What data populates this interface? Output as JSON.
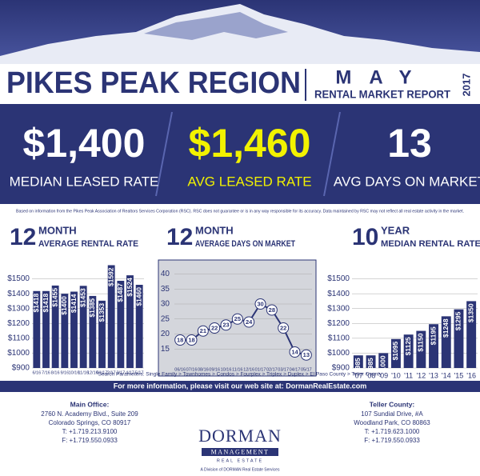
{
  "header": {
    "title": "PIKES PEAK REGION",
    "month": "MAY",
    "subtitle": "RENTAL MARKET REPORT",
    "year": "2017"
  },
  "stats": [
    {
      "value": "$1,400",
      "label": "MEDIAN LEASED RATE"
    },
    {
      "value": "$1,460",
      "label": "AVG LEASED RATE"
    },
    {
      "value": "13",
      "label": "AVG DAYS ON MARKET"
    }
  ],
  "note": "Based on information from the Pikes Peak Association of Realtors Services Corporation (RSC). RSC does not guarantee or is in any way responsible for its accuracy. Data maintained by RSC may not reflect all real estate activity in the market.",
  "chart_data": [
    {
      "type": "bar",
      "title_number": "12",
      "title_unit": "MONTH",
      "title": "AVERAGE RENTAL RATE",
      "color": "#2b3475",
      "categories": [
        "6/16",
        "7/16",
        "8/16",
        "9/16",
        "10/16",
        "11/16",
        "12/16",
        "01/17",
        "2/17",
        "3/17",
        "4/17",
        "5/17"
      ],
      "values": [
        1418,
        1418,
        1455,
        1400,
        1414,
        1453,
        1385,
        1353,
        1592,
        1487,
        1524,
        1460
      ],
      "value_labels": [
        "$1418",
        "$1418",
        "$1455",
        "$1400",
        "$1414",
        "$1453",
        "$1385",
        "$1353",
        "$1592",
        "$1487",
        "$1524",
        "$1460"
      ],
      "ylim": [
        900,
        1600
      ],
      "yticks": [
        {
          "value": 900,
          "label": "$900"
        },
        {
          "value": 1000,
          "label": "$1000"
        },
        {
          "value": 1100,
          "label": "$1100"
        },
        {
          "value": 1200,
          "label": "$1200"
        },
        {
          "value": 1300,
          "label": "$1300"
        },
        {
          "value": 1400,
          "label": "$1400"
        },
        {
          "value": 1500,
          "label": "$1500"
        }
      ],
      "grid": true
    },
    {
      "type": "line",
      "title_number": "12",
      "title_unit": "MONTH",
      "title": "AVERAGE DAYS ON MARKET",
      "color": "#2b3475",
      "categories": [
        "06/16",
        "07/16",
        "08/16",
        "09/16",
        "10/16",
        "11/16",
        "12/16",
        "01/17",
        "02/17",
        "03/17",
        "04/17",
        "05/17"
      ],
      "values": [
        18,
        18,
        21,
        22,
        23,
        25,
        24,
        30,
        28,
        22,
        14,
        13
      ],
      "ylim": [
        10,
        42
      ],
      "yticks": [
        15,
        20,
        25,
        30,
        35,
        40
      ],
      "grid": true
    },
    {
      "type": "bar",
      "title_number": "10",
      "title_unit": "YEAR",
      "title": "MEDIAN RENTAL RATE",
      "color": "#2b3475",
      "categories": [
        "'07",
        "'08",
        "'09",
        "'10",
        "'11",
        "'12",
        "'13",
        "'14",
        "'15",
        "'16"
      ],
      "values": [
        985,
        985,
        1000,
        1095,
        1125,
        1150,
        1195,
        1248,
        1295,
        1350
      ],
      "value_labels": [
        "$985",
        "$985",
        "$1000",
        "$1095",
        "$1125",
        "$1150",
        "$1195",
        "$1248",
        "$1295",
        "$1350"
      ],
      "ylim": [
        900,
        1600
      ],
      "yticks": [
        {
          "value": 900,
          "label": "$900"
        },
        {
          "value": 1000,
          "label": "$1000"
        },
        {
          "value": 1100,
          "label": "$1100"
        },
        {
          "value": 1200,
          "label": "$1200"
        },
        {
          "value": 1300,
          "label": "$1300"
        },
        {
          "value": 1400,
          "label": "$1400"
        },
        {
          "value": 1500,
          "label": "$1500"
        }
      ],
      "grid": true
    }
  ],
  "search": "Search Parameters: Single Family > Townhomes > Condos > Fourplex > Triplex > Duplex > El Paso County > Teller County",
  "banner": "For more information, please visit our web site at: DormanRealEstate.com",
  "footer": {
    "main": {
      "heading": "Main Office:",
      "lines": [
        "2760 N. Academy Blvd., Suite 209",
        "Colorado Springs, CO 80917",
        "T: +1.719.213.9100",
        "F: +1.719.550.0933"
      ]
    },
    "logo": {
      "name": "DORMAN",
      "line2": "MANAGEMENT",
      "line3": "REAL ESTATE",
      "tagline": "A Division of DORMAN Real Estate Services"
    },
    "teller": {
      "heading": "Teller County:",
      "lines": [
        "107 Sundial Drive, #A",
        "Woodland Park, CO 80863",
        "T: +1.719.623.1000",
        "F: +1.719.550.0933"
      ]
    }
  }
}
